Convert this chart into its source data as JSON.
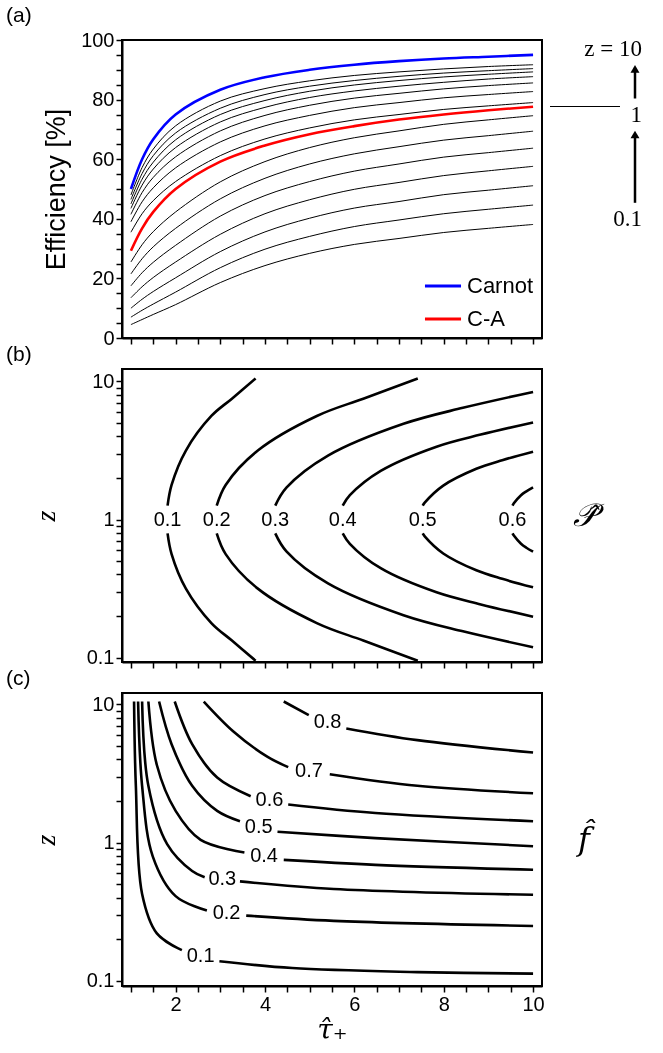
{
  "chart_data": [
    {
      "type": "line",
      "title": "(a)",
      "ylabel": "Efficiency [%]",
      "xlim": [
        0.8,
        10.2
      ],
      "ylim": [
        0,
        100
      ],
      "tick_labels": "y",
      "legend": "bottom right",
      "xticks": [
        {
          "value": 1,
          "label": null
        },
        {
          "value": 1.5,
          "label": null
        },
        2,
        {
          "value": 2.5,
          "label": null
        },
        {
          "value": 3,
          "label": null
        },
        {
          "value": 3.5,
          "label": null
        },
        4,
        {
          "value": 4.5,
          "label": null
        },
        {
          "value": 5,
          "label": null
        },
        {
          "value": 5.5,
          "label": null
        },
        6,
        {
          "value": 6.5,
          "label": null
        },
        {
          "value": 7,
          "label": null
        },
        {
          "value": 7.5,
          "label": null
        },
        8,
        {
          "value": 8.5,
          "label": null
        },
        {
          "value": 9,
          "label": null
        },
        {
          "value": 9.5,
          "label": null
        },
        10
      ],
      "yticks": [
        0,
        {
          "value": 5,
          "label": null
        },
        {
          "value": 10,
          "label": null
        },
        {
          "value": 15,
          "label": null
        },
        20,
        {
          "value": 25,
          "label": null
        },
        {
          "value": 30,
          "label": null
        },
        {
          "value": 35,
          "label": null
        },
        40,
        {
          "value": 45,
          "label": null
        },
        {
          "value": 50,
          "label": null
        },
        {
          "value": 55,
          "label": null
        },
        60,
        {
          "value": 65,
          "label": null
        },
        {
          "value": 70,
          "label": null
        },
        {
          "value": 75,
          "label": null
        },
        80,
        {
          "value": 85,
          "label": null
        },
        {
          "value": 90,
          "label": null
        },
        {
          "value": 95,
          "label": null
        },
        100
      ],
      "x": [
        1,
        1.25,
        1.5,
        2,
        3,
        4,
        5,
        6,
        7,
        8,
        9,
        10
      ],
      "series": [
        {
          "name": "Carnot",
          "color": "#0000ff",
          "values": [
            50,
            60,
            66.7,
            75,
            83.3,
            87.5,
            90,
            91.7,
            92.9,
            93.8,
            94.4,
            95
          ]
        },
        {
          "color": "#000000",
          "values": [
            48,
            57.2,
            63.4,
            71.2,
            79.5,
            83.7,
            86.3,
            88.1,
            89.3,
            90.3,
            91.1,
            91.7
          ]
        },
        {
          "color": "#000000",
          "values": [
            46.5,
            55.2,
            61.2,
            68.8,
            77.1,
            81.7,
            84.5,
            86.4,
            87.8,
            88.9,
            89.7,
            90.4
          ]
        },
        {
          "color": "#000000",
          "values": [
            45,
            53.3,
            59.0,
            66.5,
            75.0,
            79.7,
            82.8,
            84.9,
            86.4,
            87.6,
            88.5,
            89.3
          ]
        },
        {
          "color": "#000000",
          "values": [
            43.5,
            51.3,
            56.7,
            63.9,
            72.5,
            77.4,
            80.7,
            82.9,
            84.5,
            85.8,
            86.9,
            87.7
          ]
        },
        {
          "color": "#000000",
          "values": [
            41.5,
            48.8,
            53.9,
            60.8,
            69.5,
            74.7,
            78.1,
            80.5,
            82.1,
            83.6,
            84.7,
            85.6
          ]
        },
        {
          "color": "#000000",
          "values": [
            39,
            45.7,
            50.4,
            57.1,
            65.8,
            71.2,
            74.7,
            77.3,
            79.0,
            80.6,
            81.7,
            82.7
          ]
        },
        {
          "color": "#000000",
          "values": [
            35.5,
            41.7,
            46.1,
            52.5,
            61.2,
            66.8,
            70.5,
            73.2,
            75.0,
            76.7,
            77.9,
            79
          ]
        },
        {
          "name": "C-A",
          "color": "#ff0000",
          "values": [
            29.3,
            36.8,
            42.3,
            50,
            59.2,
            64.6,
            68.4,
            71.1,
            73.3,
            75,
            76.4,
            77.6
          ]
        },
        {
          "color": "#000000",
          "values": [
            25.5,
            31.3,
            35.7,
            42.3,
            52.4,
            59.2,
            63.9,
            67.2,
            69.5,
            71.7,
            73.2,
            74.6
          ]
        },
        {
          "color": "#000000",
          "values": [
            21.5,
            26.6,
            30.6,
            36.8,
            46.7,
            53.6,
            58.4,
            61.8,
            64.2,
            66.4,
            67.9,
            69.4
          ]
        },
        {
          "color": "#000000",
          "values": [
            17.5,
            21.9,
            25.4,
            31.1,
            40.9,
            47.8,
            52.5,
            56.0,
            58.4,
            60.7,
            62.2,
            63.7
          ]
        },
        {
          "color": "#000000",
          "values": [
            13.5,
            17.2,
            20.3,
            25.5,
            34.8,
            41.7,
            46.4,
            49.9,
            52.2,
            54.5,
            56.1,
            57.6
          ]
        },
        {
          "color": "#000000",
          "values": [
            10,
            13.0,
            15.6,
            20.2,
            29.0,
            35.6,
            40.2,
            43.6,
            45.8,
            48.1,
            49.6,
            51.1
          ]
        },
        {
          "color": "#000000",
          "values": [
            7,
            9.3,
            11.4,
            15.4,
            23.6,
            29.8,
            34.1,
            37.4,
            39.6,
            41.7,
            43.2,
            44.6
          ]
        },
        {
          "color": "#000000",
          "values": [
            4.5,
            6.2,
            7.9,
            11.2,
            18.6,
            24.3,
            28.4,
            31.4,
            33.4,
            35.4,
            36.8,
            38.1
          ]
        }
      ],
      "annotations": [
        "z = 10",
        "1",
        "0.1"
      ]
    },
    {
      "type": "line",
      "title": "(b)",
      "ylabel": "z",
      "log": "y",
      "xlim": [
        0.8,
        10.2
      ],
      "ylim": [
        0.093,
        12.3
      ],
      "tick_labels": "y",
      "xticks": [
        {
          "value": 1,
          "label": null
        },
        {
          "value": 1.5,
          "label": null
        },
        2,
        {
          "value": 2.5,
          "label": null
        },
        {
          "value": 3,
          "label": null
        },
        {
          "value": 3.5,
          "label": null
        },
        4,
        {
          "value": 4.5,
          "label": null
        },
        {
          "value": 5,
          "label": null
        },
        {
          "value": 5.5,
          "label": null
        },
        6,
        {
          "value": 6.5,
          "label": null
        },
        {
          "value": 7,
          "label": null
        },
        {
          "value": 7.5,
          "label": null
        },
        8,
        {
          "value": 8.5,
          "label": null
        },
        {
          "value": 9,
          "label": null
        },
        {
          "value": 9.5,
          "label": null
        },
        10
      ],
      "yticks": [
        0.1,
        {
          "value": 0.2,
          "label": null
        },
        {
          "value": 0.3,
          "label": null
        },
        {
          "value": 0.4,
          "label": null
        },
        {
          "value": 0.5,
          "label": null
        },
        {
          "value": 0.6,
          "label": null
        },
        {
          "value": 0.7,
          "label": null
        },
        {
          "value": 0.8,
          "label": null
        },
        {
          "value": 0.9,
          "label": null
        },
        1,
        {
          "value": 2,
          "label": null
        },
        {
          "value": 3,
          "label": null
        },
        {
          "value": 4,
          "label": null
        },
        {
          "value": 5,
          "label": null
        },
        {
          "value": 6,
          "label": null
        },
        {
          "value": 7,
          "label": null
        },
        {
          "value": 8,
          "label": null
        },
        {
          "value": 9,
          "label": null
        },
        10
      ],
      "series": [
        {
          "name": "0.1",
          "color": "#000000",
          "x": [
            3.79,
            3.26,
            2.8,
            2.23,
            1.91,
            1.82,
            null,
            1.82,
            1.91,
            2.23,
            2.8,
            3.26,
            3.79
          ],
          "values": [
            10.5,
            7.5,
            5.62,
            3.16,
            1.78,
            1.26,
            null,
            0.794,
            0.562,
            0.316,
            0.178,
            0.133,
            0.095
          ]
        },
        {
          "name": "0.2",
          "color": "#000000",
          "x": [
            7.42,
            6.2,
            5.16,
            3.84,
            3.12,
            2.92,
            null,
            2.92,
            3.12,
            3.84,
            5.16,
            6.2,
            7.42
          ],
          "values": [
            10.5,
            7.5,
            5.62,
            3.16,
            1.78,
            1.26,
            null,
            0.794,
            0.562,
            0.316,
            0.178,
            0.133,
            0.095
          ]
        },
        {
          "name": "0.3",
          "color": "#000000",
          "x": [
            10,
            8.43,
            7.1,
            5.41,
            4.48,
            4.23,
            null,
            4.23,
            4.48,
            5.41,
            7.1,
            8.43,
            10
          ],
          "values": [
            8.39,
            6.44,
            4.93,
            2.9,
            1.7,
            1.26,
            null,
            0.794,
            0.588,
            0.345,
            0.203,
            0.155,
            0.119
          ]
        },
        {
          "name": "0.4",
          "color": "#000000",
          "x": [
            10,
            8.83,
            7.84,
            6.59,
            5.9,
            5.74,
            null,
            5.74,
            5.9,
            6.59,
            7.84,
            8.83,
            10
          ],
          "values": [
            5.05,
            4.12,
            3.37,
            2.25,
            1.5,
            1.26,
            null,
            0.794,
            0.667,
            0.444,
            0.297,
            0.243,
            0.198
          ]
        },
        {
          "name": "0.5",
          "color": "#000000",
          "x": [
            10,
            9.31,
            8.73,
            7.99,
            7.58,
            7.53,
            null,
            7.53,
            7.58,
            7.99,
            8.73,
            9.31,
            10
          ],
          "values": [
            3.1,
            2.69,
            2.33,
            1.76,
            1.33,
            1.26,
            null,
            0.794,
            0.752,
            0.568,
            0.429,
            0.372,
            0.323
          ]
        },
        {
          "name": "0.6",
          "color": "#000000",
          "x": [
            10,
            9.85,
            9.73,
            9.57,
            9.54,
            null,
            9.54,
            9.57,
            9.73,
            9.85,
            10
          ],
          "values": [
            1.71,
            1.6,
            1.5,
            1.31,
            1.26,
            null,
            0.794,
            0.765,
            0.668,
            0.625,
            0.585
          ]
        }
      ],
      "annotations": [
        "𝒫̂"
      ]
    },
    {
      "type": "line",
      "title": "(c)",
      "xlabel": "τ̂₊",
      "ylabel": "z",
      "log": "y",
      "xlim": [
        0.8,
        10.2
      ],
      "ylim": [
        0.092,
        12.1
      ],
      "xticks": [
        {
          "value": 1,
          "label": null
        },
        {
          "value": 1.5,
          "label": null
        },
        2,
        {
          "value": 2.5,
          "label": null
        },
        {
          "value": 3,
          "label": null
        },
        {
          "value": 3.5,
          "label": null
        },
        4,
        {
          "value": 4.5,
          "label": null
        },
        {
          "value": 5,
          "label": null
        },
        {
          "value": 5.5,
          "label": null
        },
        6,
        {
          "value": 6.5,
          "label": null
        },
        {
          "value": 7,
          "label": null
        },
        {
          "value": 7.5,
          "label": null
        },
        8,
        {
          "value": 8.5,
          "label": null
        },
        {
          "value": 9,
          "label": null
        },
        {
          "value": 9.5,
          "label": null
        },
        10
      ],
      "yticks": [
        0.1,
        {
          "value": 0.2,
          "label": null
        },
        {
          "value": 0.3,
          "label": null
        },
        {
          "value": 0.4,
          "label": null
        },
        {
          "value": 0.5,
          "label": null
        },
        {
          "value": 0.6,
          "label": null
        },
        {
          "value": 0.7,
          "label": null
        },
        {
          "value": 0.8,
          "label": null
        },
        {
          "value": 0.9,
          "label": null
        },
        1,
        {
          "value": 2,
          "label": null
        },
        {
          "value": 3,
          "label": null
        },
        {
          "value": 4,
          "label": null
        },
        {
          "value": 5,
          "label": null
        },
        {
          "value": 6,
          "label": null
        },
        {
          "value": 7,
          "label": null
        },
        {
          "value": 8,
          "label": null
        },
        {
          "value": 9,
          "label": null
        },
        10
      ],
      "series": [
        {
          "name": "0.1",
          "color": "#000000",
          "x": [
            1.07,
            1.11,
            1.25,
            1.58,
            2.14,
            null,
            2.98,
            4.61,
            7.41,
            10
          ],
          "values": [
            10.5,
            2.58,
            0.426,
            0.221,
            0.167,
            null,
            0.139,
            0.124,
            0.116,
            0.113
          ]
        },
        {
          "name": "0.2",
          "color": "#000000",
          "x": [
            1.16,
            1.25,
            1.49,
            2.0,
            2.7,
            null,
            3.58,
            5.54,
            10
          ],
          "values": [
            10.5,
            2.58,
            0.794,
            0.411,
            0.323,
            null,
            0.297,
            0.272,
            0.25
          ]
        },
        {
          "name": "0.3",
          "color": "#000000",
          "x": [
            1.25,
            1.39,
            1.81,
            2.37,
            2.65,
            null,
            3.44,
            5.54,
            10
          ],
          "values": [
            10.5,
            2.58,
            0.977,
            0.624,
            0.562,
            null,
            0.525,
            0.463,
            0.42
          ]
        },
        {
          "name": "0.4",
          "color": "#000000",
          "x": [
            1.39,
            1.58,
            2.0,
            2.56,
            3.54,
            null,
            4.42,
            6.47,
            10
          ],
          "values": [
            10.5,
            3.65,
            1.7,
            1.05,
            0.851,
            null,
            0.751,
            0.692,
            0.637
          ]
        },
        {
          "name": "0.5",
          "color": "#000000",
          "x": [
            1.63,
            1.91,
            2.37,
            2.93,
            3.44,
            null,
            4.28,
            6.47,
            10
          ],
          "values": [
            10.5,
            5.16,
            2.58,
            1.7,
            1.43,
            null,
            1.2,
            1.08,
            0.944
          ]
        },
        {
          "name": "0.6",
          "color": "#000000",
          "x": [
            1.98,
            2.37,
            2.93,
            3.68,
            null,
            4.52,
            6.47,
            10
          ],
          "values": [
            10.5,
            5.16,
            2.96,
            2.17,
            null,
            1.89,
            1.64,
            1.43
          ]
        },
        {
          "name": "0.7",
          "color": "#000000",
          "x": [
            2.63,
            3.3,
            4.05,
            4.52,
            null,
            5.45,
            7.41,
            10
          ],
          "values": [
            10.5,
            6.35,
            4.19,
            3.52,
            null,
            3.13,
            2.58,
            2.28
          ]
        },
        {
          "name": "0.8",
          "color": "#000000",
          "x": [
            4.42,
            4.98,
            null,
            5.82,
            7.41,
            10
          ],
          "values": [
            10.5,
            8.38,
            null,
            6.71,
            5.52,
            4.49
          ]
        }
      ],
      "annotations": [
        "f̂"
      ]
    }
  ]
}
